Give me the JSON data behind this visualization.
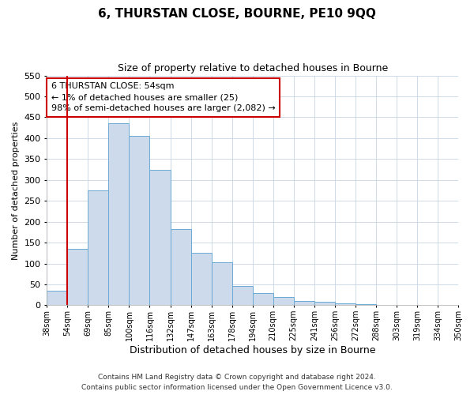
{
  "title": "6, THURSTAN CLOSE, BOURNE, PE10 9QQ",
  "subtitle": "Size of property relative to detached houses in Bourne",
  "xlabel": "Distribution of detached houses by size in Bourne",
  "ylabel": "Number of detached properties",
  "bin_labels": [
    "38sqm",
    "54sqm",
    "69sqm",
    "85sqm",
    "100sqm",
    "116sqm",
    "132sqm",
    "147sqm",
    "163sqm",
    "178sqm",
    "194sqm",
    "210sqm",
    "225sqm",
    "241sqm",
    "256sqm",
    "272sqm",
    "288sqm",
    "303sqm",
    "319sqm",
    "334sqm",
    "350sqm"
  ],
  "bar_heights": [
    35,
    135,
    275,
    435,
    405,
    325,
    182,
    125,
    103,
    46,
    30,
    20,
    10,
    8,
    5,
    2,
    1,
    1,
    0,
    1
  ],
  "bar_color": "#ccdaeb",
  "bar_edge_color": "#6aaad4",
  "vline_color": "#cc0000",
  "vline_x": 1,
  "annotation_text": "6 THURSTAN CLOSE: 54sqm\n← 1% of detached houses are smaller (25)\n98% of semi-detached houses are larger (2,082) →",
  "annotation_box_color": "#ffffff",
  "annotation_box_edge": "#cc0000",
  "ylim": [
    0,
    550
  ],
  "yticks": [
    0,
    50,
    100,
    150,
    200,
    250,
    300,
    350,
    400,
    450,
    500,
    550
  ],
  "footer1": "Contains HM Land Registry data © Crown copyright and database right 2024.",
  "footer2": "Contains public sector information licensed under the Open Government Licence v3.0.",
  "background_color": "#ffffff",
  "grid_color": "#c8d4e4"
}
